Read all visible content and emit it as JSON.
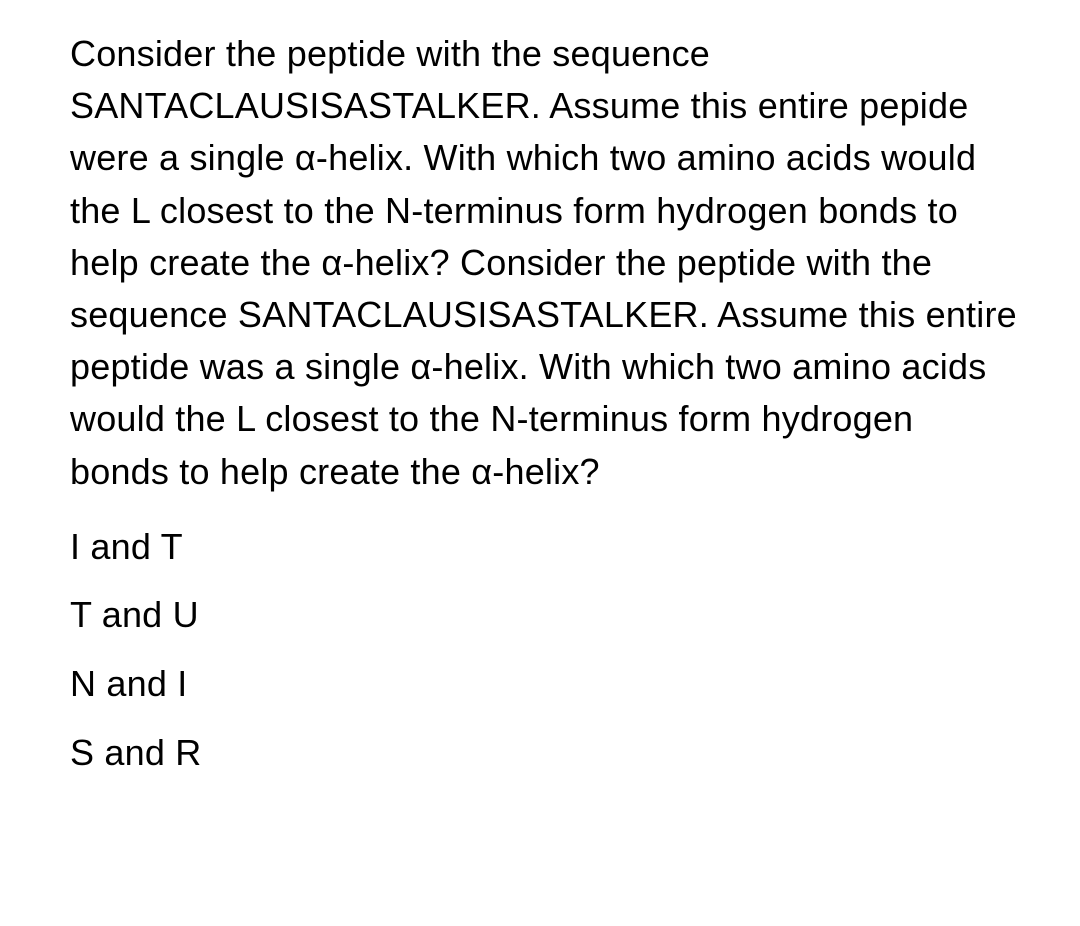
{
  "question": {
    "text": "Consider the peptide with the sequence SANTACLAUSISASTALKER. Assume this entire pepide were a single α-helix. With which two amino acids would the L closest to the N-terminus form hydrogen bonds to help create the α-helix? Consider the peptide with the sequence SANTACLAUSISASTALKER. Assume this entire peptide was a single α-helix. With which two amino acids would the L closest to the N-terminus form hydrogen bonds to help create the α-helix?",
    "font_size": 36,
    "color": "#000000"
  },
  "options": [
    {
      "label": "I and T"
    },
    {
      "label": "T and U"
    },
    {
      "label": "N and I"
    },
    {
      "label": "S and R"
    }
  ],
  "styling": {
    "background_color": "#ffffff",
    "text_color": "#000000",
    "font_family": "Arial, Helvetica, sans-serif",
    "line_height": 1.45
  }
}
